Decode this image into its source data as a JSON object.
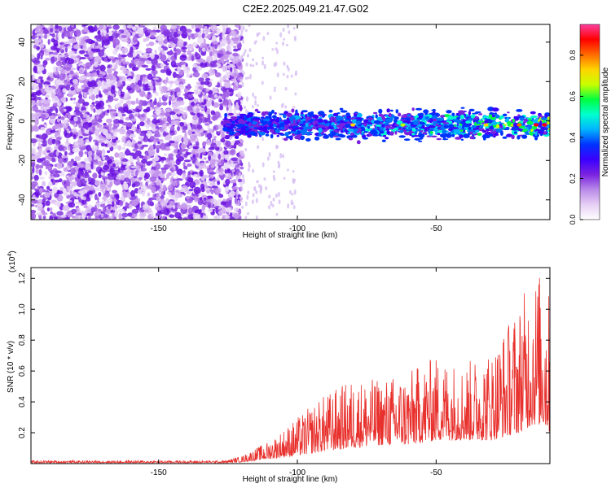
{
  "figure": {
    "title": "C2E2.2025.049.21.47.G02"
  },
  "colors": {
    "series": "#e8302c",
    "axis": "#000000",
    "colormap": [
      "#ffffff",
      "#e6cff5",
      "#b98ae8",
      "#7a22e0",
      "#3b00ff",
      "#0033ff",
      "#00b4ff",
      "#00ffd0",
      "#00ff40",
      "#c8ff00",
      "#ffd400",
      "#ff6a00",
      "#ff0000",
      "#ff3fa0"
    ]
  },
  "chart_data": [
    {
      "type": "heatmap",
      "title": "C2E2.2025.049.21.47.G02",
      "xlabel": "Height of straight line (km)",
      "ylabel": "Frequency (Hz)",
      "xlim": [
        -196,
        -9
      ],
      "ylim": [
        -50,
        49
      ],
      "xticks": [
        -150,
        -100,
        -50
      ],
      "yticks": [
        -40,
        -20,
        0,
        20,
        40
      ],
      "colorbar": {
        "label": "Normalized spectral amplitude",
        "range": [
          0.0,
          0.95
        ],
        "ticks": [
          "0.0",
          "0.2",
          "0.4",
          "0.6",
          "0.8"
        ]
      },
      "signal_band": {
        "center_hz": -2,
        "halfwidth_hz": 5,
        "x_start": -126
      }
    },
    {
      "type": "line",
      "xlabel": "Height of straight line (km)",
      "ylabel": "SNR (10 * v/v)",
      "exponent": "(x10",
      "exponent_power": "4",
      "xlim": [
        -196,
        -9
      ],
      "ylim": [
        0,
        1.27
      ],
      "xticks": [
        -150,
        -100,
        -50
      ],
      "yticks": [
        "0.2",
        "0.4",
        "0.6",
        "0.8",
        "1.0",
        "1.2"
      ],
      "envelope": {
        "x": [
          -196,
          -150,
          -126,
          -120,
          -110,
          -100,
          -90,
          -80,
          -70,
          -60,
          -50,
          -40,
          -30,
          -20,
          -15,
          -12,
          -9
        ],
        "peak": [
          0.02,
          0.02,
          0.02,
          0.05,
          0.15,
          0.3,
          0.45,
          0.55,
          0.55,
          0.6,
          0.7,
          0.65,
          0.75,
          1.05,
          1.25,
          1.25,
          1.1
        ],
        "base": [
          0.005,
          0.005,
          0.005,
          0.01,
          0.03,
          0.05,
          0.08,
          0.1,
          0.12,
          0.12,
          0.15,
          0.15,
          0.15,
          0.2,
          0.25,
          0.25,
          0.2
        ]
      }
    }
  ]
}
